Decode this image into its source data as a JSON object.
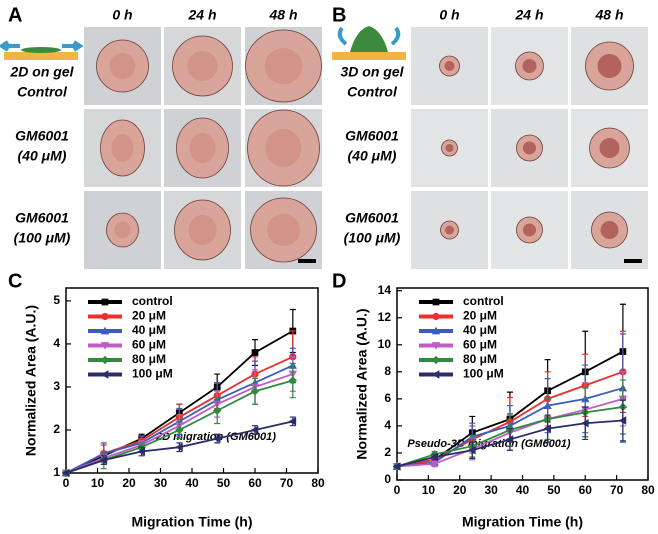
{
  "panels": [
    {
      "letter": "A",
      "columns": [
        "0 h",
        "24 h",
        "48 h"
      ],
      "rows": [
        [
          "2D on gel",
          "Control"
        ],
        [
          "GM6001",
          "(40 μM)"
        ],
        [
          "GM6001",
          "(100 μM)"
        ]
      ]
    },
    {
      "letter": "B",
      "columns": [
        "0 h",
        "24 h",
        "48 h"
      ],
      "rows": [
        [
          "3D on gel",
          "Control"
        ],
        [
          "GM6001",
          "(40 μM)"
        ],
        [
          "GM6001",
          "(100 μM)"
        ]
      ]
    }
  ],
  "chart_data": [
    {
      "type": "line",
      "panel_label": "C",
      "x_label": "Migration Time (h)",
      "y_label": "Normalized Area (A.U.)",
      "annotation": "2D migration (GM6001)",
      "x": [
        0,
        12,
        24,
        36,
        48,
        60,
        72
      ],
      "xlim": [
        0,
        80
      ],
      "xticks": [
        0,
        10,
        20,
        30,
        40,
        50,
        60,
        70,
        80
      ],
      "ylim": [
        1,
        5.3
      ],
      "yticks": [
        1,
        2,
        3,
        4,
        5
      ],
      "legend": "upper-left",
      "series": [
        {
          "name": "control",
          "color": "#000000",
          "marker": "square",
          "values": [
            1,
            1.4,
            1.8,
            2.4,
            3.0,
            3.8,
            4.3
          ],
          "errors": [
            0,
            0.1,
            0.1,
            0.2,
            0.3,
            0.3,
            0.5
          ]
        },
        {
          "name": "20 μM",
          "color": "#e8312a",
          "marker": "circle",
          "values": [
            1,
            1.45,
            1.75,
            2.3,
            2.8,
            3.3,
            3.7
          ],
          "errors": [
            0,
            0.2,
            0.1,
            0.3,
            0.3,
            0.4,
            0.6
          ]
        },
        {
          "name": "40 μM",
          "color": "#3b5bbf",
          "marker": "triangle-up",
          "values": [
            1,
            1.45,
            1.7,
            2.2,
            2.7,
            3.1,
            3.5
          ],
          "errors": [
            0,
            0.25,
            0.15,
            0.3,
            0.4,
            0.5,
            0.4
          ]
        },
        {
          "name": "60 μM",
          "color": "#c05cc5",
          "marker": "triangle-down",
          "values": [
            1,
            1.35,
            1.65,
            2.1,
            2.6,
            3.0,
            3.3
          ],
          "errors": [
            0,
            0.15,
            0.1,
            0.25,
            0.3,
            0.4,
            0.4
          ]
        },
        {
          "name": "80 μM",
          "color": "#2f8a3a",
          "marker": "diamond",
          "values": [
            1,
            1.3,
            1.6,
            2.0,
            2.45,
            2.9,
            3.15
          ],
          "errors": [
            0,
            0.2,
            0.1,
            0.2,
            0.3,
            0.3,
            0.4
          ]
        },
        {
          "name": "100 μM",
          "color": "#2b2d6b",
          "marker": "triangle-left",
          "values": [
            1,
            1.3,
            1.5,
            1.6,
            1.8,
            2.0,
            2.2
          ],
          "errors": [
            0,
            0.1,
            0.1,
            0.1,
            0.1,
            0.1,
            0.1
          ]
        }
      ]
    },
    {
      "type": "line",
      "panel_label": "D",
      "x_label": "Migration Time (h)",
      "y_label": "Normalized Area (A.U.)",
      "annotation": "Pseudo-3D migration (GM6001)",
      "x": [
        0,
        12,
        24,
        36,
        48,
        60,
        72
      ],
      "xlim": [
        0,
        80
      ],
      "xticks": [
        0,
        10,
        20,
        30,
        40,
        50,
        60,
        70,
        80
      ],
      "ylim": [
        0,
        14.2
      ],
      "yticks": [
        0,
        2,
        4,
        6,
        8,
        10,
        12,
        14
      ],
      "legend": "upper-left",
      "series": [
        {
          "name": "control",
          "color": "#000000",
          "marker": "square",
          "values": [
            1,
            1.5,
            3.5,
            4.5,
            6.6,
            8.0,
            9.5
          ],
          "errors": [
            0,
            0.2,
            1.2,
            2,
            2.3,
            3,
            3.5
          ]
        },
        {
          "name": "20 μM",
          "color": "#e8312a",
          "marker": "circle",
          "values": [
            1,
            1.5,
            3.0,
            4.3,
            6.0,
            7.0,
            8.0
          ],
          "errors": [
            0,
            0.3,
            1,
            1.8,
            2,
            2.3,
            3
          ]
        },
        {
          "name": "40 μM",
          "color": "#3b5bbf",
          "marker": "triangle-up",
          "values": [
            1,
            1.3,
            3.2,
            4.0,
            5.5,
            6.0,
            6.8
          ],
          "errors": [
            0,
            0.3,
            1,
            1.5,
            2,
            2.5,
            4
          ]
        },
        {
          "name": "60 μM",
          "color": "#c05cc5",
          "marker": "triangle-down",
          "values": [
            1,
            1.2,
            2.3,
            3.5,
            4.5,
            5.2,
            6.0
          ],
          "errors": [
            0,
            0.2,
            0.8,
            1.3,
            1.5,
            2,
            2
          ]
        },
        {
          "name": "80 μM",
          "color": "#2f8a3a",
          "marker": "diamond",
          "values": [
            1,
            1.9,
            2.5,
            3.7,
            4.5,
            5.0,
            5.4
          ],
          "errors": [
            0,
            0.2,
            0.8,
            1.2,
            1.5,
            1.8,
            2
          ]
        },
        {
          "name": "100 μM",
          "color": "#2b2d6b",
          "marker": "triangle-left",
          "values": [
            1,
            1.7,
            2.2,
            3.0,
            3.8,
            4.2,
            4.4
          ],
          "errors": [
            0,
            0.2,
            0.6,
            0.8,
            1,
            1.2,
            1.5
          ]
        }
      ]
    }
  ]
}
